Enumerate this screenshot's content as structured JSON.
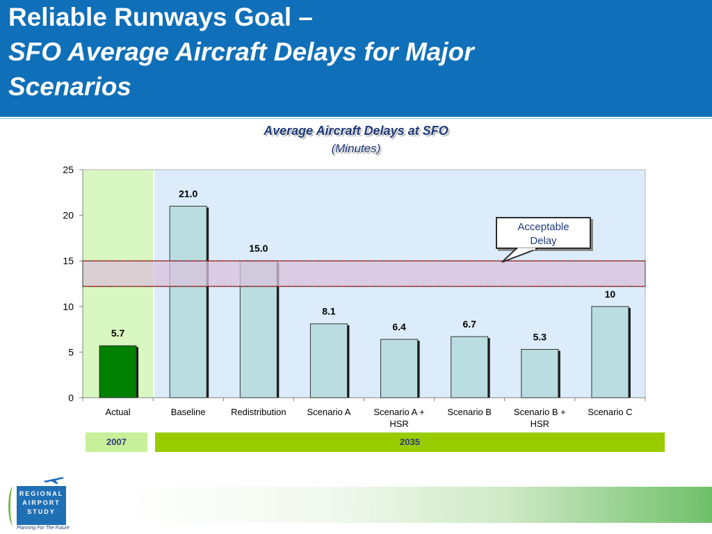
{
  "header": {
    "title_line1": "Reliable Runways Goal –",
    "title_line2": "SFO Average Aircraft Delays for Major",
    "title_line3": "Scenarios",
    "color": "#0f6fb8"
  },
  "chart_data": {
    "type": "bar",
    "title": "Average Aircraft Delays at SFO",
    "subtitle": "(Minutes)",
    "categories": [
      "Actual",
      "Baseline",
      "Redistribution",
      "Scenario A",
      "Scenario A + HSR",
      "Scenario B",
      "Scenario B + HSR",
      "Scenario C"
    ],
    "values": [
      5.7,
      21.0,
      15.0,
      8.1,
      6.4,
      6.7,
      5.3,
      10
    ],
    "value_labels": [
      "5.7",
      "21.0",
      "15.0",
      "8.1",
      "6.4",
      "6.7",
      "5.3",
      "10"
    ],
    "bar_colors": [
      "#008000",
      "#b9dde1",
      "#b9dde1",
      "#b9dde1",
      "#b9dde1",
      "#b9dde1",
      "#b9dde1",
      "#b9dde1"
    ],
    "ylim": [
      0,
      25
    ],
    "yticks": [
      0,
      5,
      10,
      15,
      20,
      25
    ],
    "grid": false,
    "acceptable_delay_band": [
      12.2,
      15.0
    ],
    "band_color": "#d9c2d9",
    "period_backgrounds": [
      {
        "from_category": 0,
        "to_category": 0,
        "color": "#d9f7c0"
      },
      {
        "from_category": 1,
        "to_category": 7,
        "color": "#dcecfa"
      }
    ],
    "callout": {
      "line1": "Acceptable",
      "line2": "Delay"
    }
  },
  "periods": {
    "p2007": "2007",
    "p2035": "2035"
  },
  "logo": {
    "line1": "REGIONAL",
    "line2": "AIRPORT",
    "line3": "STUDY",
    "tagline": "Planning For The Future"
  }
}
